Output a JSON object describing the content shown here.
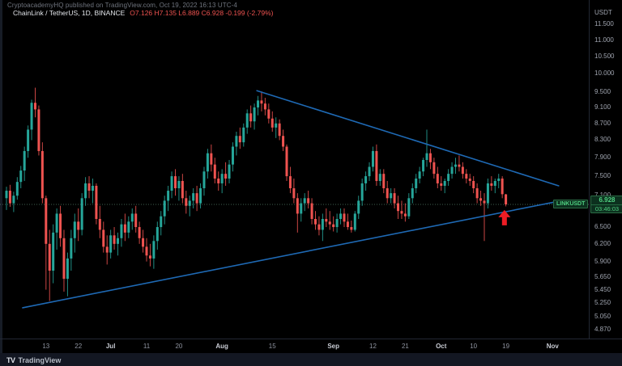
{
  "header": {
    "watermark": "CryptoacademyHQ published on TradingView.com, Oct 19, 2022 16:13 UTC-4",
    "symbol": "ChainLink / TetherUS, 1D, BINANCE",
    "ohlc": "O7.126 H7.135 L6.889 C6.928 -0.199 (-2.79%)"
  },
  "price_axis": {
    "unit": "USDT",
    "ticks": [
      {
        "label": "11.500",
        "value": 11.5
      },
      {
        "label": "11.000",
        "value": 11.0
      },
      {
        "label": "10.500",
        "value": 10.5
      },
      {
        "label": "10.000",
        "value": 10.0
      },
      {
        "label": "9.500",
        "value": 9.5
      },
      {
        "label": "9.100",
        "value": 9.1
      },
      {
        "label": "8.700",
        "value": 8.7
      },
      {
        "label": "8.300",
        "value": 8.3
      },
      {
        "label": "7.900",
        "value": 7.9
      },
      {
        "label": "7.500",
        "value": 7.5
      },
      {
        "label": "7.100",
        "value": 7.1
      },
      {
        "label": "6.500",
        "value": 6.5
      },
      {
        "label": "6.200",
        "value": 6.2
      },
      {
        "label": "5.900",
        "value": 5.9
      },
      {
        "label": "5.650",
        "value": 5.65
      },
      {
        "label": "5.450",
        "value": 5.45
      },
      {
        "label": "5.250",
        "value": 5.25
      },
      {
        "label": "5.050",
        "value": 5.05
      },
      {
        "label": "4.870",
        "value": 4.87
      }
    ],
    "current": {
      "price": "6.928",
      "countdown": "03:46:03"
    }
  },
  "time_axis": {
    "ticks": [
      {
        "label": "13",
        "bar": 11,
        "month": false
      },
      {
        "label": "22",
        "bar": 20,
        "month": false
      },
      {
        "label": "Jul",
        "bar": 29,
        "month": true
      },
      {
        "label": "11",
        "bar": 39,
        "month": false
      },
      {
        "label": "20",
        "bar": 48,
        "month": false
      },
      {
        "label": "Aug",
        "bar": 60,
        "month": true
      },
      {
        "label": "15",
        "bar": 74,
        "month": false
      },
      {
        "label": "Sep",
        "bar": 91,
        "month": true
      },
      {
        "label": "12",
        "bar": 102,
        "month": false
      },
      {
        "label": "21",
        "bar": 111,
        "month": false
      },
      {
        "label": "Oct",
        "bar": 121,
        "month": true
      },
      {
        "label": "10",
        "bar": 130,
        "month": false
      },
      {
        "label": "19",
        "bar": 139,
        "month": false
      },
      {
        "label": "Nov",
        "bar": 152,
        "month": true
      }
    ]
  },
  "symbol_label": "LINKUSDT",
  "footer": {
    "logo_glyph": "TV",
    "brand": "TradingView"
  },
  "colors": {
    "background": "#000000",
    "up": "#26a69a",
    "down": "#ef5350",
    "trendline": "#1e69b4",
    "arrow": "#ed1c24",
    "price_line": "#567f6a",
    "label_bg": "#0c301e",
    "label_text": "#50d282"
  },
  "chart_data": {
    "type": "candlestick",
    "symbol": "LINKUSDT",
    "exchange": "BINANCE",
    "interval": "1D",
    "title": "ChainLink / TetherUS, 1D, BINANCE",
    "start_date": "2022-06-02",
    "end_date": "2022-10-19",
    "price_scale": "log",
    "ylim": [
      4.75,
      12.3
    ],
    "grid": false,
    "last_bar": {
      "open": 7.126,
      "high": 7.135,
      "low": 6.889,
      "close": 6.928,
      "change": -0.199,
      "change_pct": "-2.79%"
    },
    "price_line": 6.928,
    "candles": [
      [
        7.05,
        7.28,
        6.82,
        7.2
      ],
      [
        7.2,
        7.32,
        6.88,
        6.95
      ],
      [
        6.95,
        7.18,
        6.78,
        7.1
      ],
      [
        7.1,
        7.48,
        7.02,
        7.38
      ],
      [
        7.38,
        7.72,
        7.25,
        7.62
      ],
      [
        7.62,
        8.15,
        7.4,
        8.05
      ],
      [
        8.05,
        8.65,
        7.9,
        8.55
      ],
      [
        8.55,
        9.3,
        8.3,
        9.22
      ],
      [
        9.22,
        9.62,
        8.85,
        9.05
      ],
      [
        9.05,
        9.15,
        7.95,
        8.05
      ],
      [
        8.05,
        8.25,
        6.95,
        7.05
      ],
      [
        7.05,
        7.1,
        5.45,
        6.2
      ],
      [
        6.2,
        6.45,
        5.28,
        5.75
      ],
      [
        5.75,
        6.55,
        5.55,
        6.4
      ],
      [
        6.4,
        6.85,
        6.1,
        6.75
      ],
      [
        6.75,
        6.9,
        6.15,
        6.3
      ],
      [
        6.3,
        6.45,
        5.42,
        5.62
      ],
      [
        5.62,
        6.05,
        5.35,
        5.95
      ],
      [
        5.95,
        6.45,
        5.75,
        6.3
      ],
      [
        6.3,
        6.75,
        6.05,
        6.6
      ],
      [
        6.6,
        6.85,
        6.25,
        6.45
      ],
      [
        6.45,
        7.15,
        6.35,
        7.05
      ],
      [
        7.05,
        7.48,
        6.9,
        7.35
      ],
      [
        7.35,
        7.5,
        7.05,
        7.2
      ],
      [
        7.2,
        7.45,
        6.95,
        7.3
      ],
      [
        7.3,
        7.35,
        6.55,
        6.65
      ],
      [
        6.65,
        6.9,
        6.3,
        6.45
      ],
      [
        6.45,
        6.6,
        6.05,
        6.15
      ],
      [
        6.15,
        6.35,
        5.85,
        6.05
      ],
      [
        6.05,
        6.45,
        5.95,
        6.35
      ],
      [
        6.35,
        6.5,
        6.1,
        6.2
      ],
      [
        6.2,
        6.4,
        6.0,
        6.3
      ],
      [
        6.3,
        6.65,
        6.15,
        6.55
      ],
      [
        6.55,
        6.75,
        6.25,
        6.4
      ],
      [
        6.4,
        6.7,
        6.3,
        6.6
      ],
      [
        6.6,
        6.85,
        6.45,
        6.75
      ],
      [
        6.75,
        6.9,
        6.4,
        6.5
      ],
      [
        6.5,
        6.6,
        6.2,
        6.3
      ],
      [
        6.3,
        6.45,
        6.05,
        6.15
      ],
      [
        6.15,
        6.3,
        5.9,
        6.0
      ],
      [
        6.0,
        6.2,
        5.82,
        5.95
      ],
      [
        5.95,
        6.35,
        5.78,
        6.25
      ],
      [
        6.25,
        6.6,
        6.1,
        6.5
      ],
      [
        6.5,
        6.8,
        6.35,
        6.7
      ],
      [
        6.7,
        7.1,
        6.55,
        7.0
      ],
      [
        7.0,
        7.3,
        6.8,
        7.2
      ],
      [
        7.2,
        7.6,
        7.05,
        7.5
      ],
      [
        7.5,
        7.65,
        7.1,
        7.25
      ],
      [
        7.25,
        7.5,
        7.0,
        7.4
      ],
      [
        7.4,
        7.55,
        6.95,
        7.05
      ],
      [
        7.05,
        7.2,
        6.75,
        6.9
      ],
      [
        6.9,
        7.1,
        6.7,
        7.0
      ],
      [
        7.0,
        7.25,
        6.85,
        7.15
      ],
      [
        7.15,
        7.3,
        6.8,
        6.95
      ],
      [
        6.95,
        7.35,
        6.85,
        7.25
      ],
      [
        7.25,
        7.7,
        7.1,
        7.6
      ],
      [
        7.6,
        8.1,
        7.45,
        8.0
      ],
      [
        8.0,
        8.2,
        7.6,
        7.75
      ],
      [
        7.75,
        7.9,
        7.35,
        7.45
      ],
      [
        7.45,
        7.6,
        7.2,
        7.35
      ],
      [
        7.35,
        7.65,
        7.15,
        7.55
      ],
      [
        7.55,
        7.8,
        7.3,
        7.45
      ],
      [
        7.45,
        7.85,
        7.35,
        7.75
      ],
      [
        7.75,
        8.25,
        7.6,
        8.15
      ],
      [
        8.15,
        8.5,
        7.95,
        8.4
      ],
      [
        8.4,
        8.6,
        8.1,
        8.25
      ],
      [
        8.25,
        8.7,
        8.15,
        8.6
      ],
      [
        8.6,
        9.05,
        8.45,
        8.95
      ],
      [
        8.95,
        9.15,
        8.6,
        8.75
      ],
      [
        8.75,
        9.2,
        8.55,
        9.1
      ],
      [
        9.1,
        9.4,
        8.9,
        9.28
      ],
      [
        9.28,
        9.52,
        9.0,
        9.2
      ],
      [
        9.2,
        9.35,
        8.9,
        9.05
      ],
      [
        9.05,
        9.2,
        8.7,
        8.82
      ],
      [
        8.82,
        9.0,
        8.5,
        8.6
      ],
      [
        8.6,
        8.85,
        8.35,
        8.7
      ],
      [
        8.7,
        8.8,
        8.3,
        8.4
      ],
      [
        8.4,
        8.55,
        8.05,
        8.15
      ],
      [
        8.15,
        8.2,
        7.4,
        7.5
      ],
      [
        7.5,
        7.7,
        7.15,
        7.25
      ],
      [
        7.25,
        7.45,
        6.95,
        7.05
      ],
      [
        7.05,
        7.15,
        6.4,
        6.75
      ],
      [
        6.75,
        7.05,
        6.6,
        6.95
      ],
      [
        6.95,
        7.15,
        6.8,
        7.05
      ],
      [
        7.05,
        7.2,
        6.85,
        6.95
      ],
      [
        6.95,
        7.05,
        6.55,
        6.65
      ],
      [
        6.65,
        6.8,
        6.45,
        6.55
      ],
      [
        6.55,
        6.7,
        6.35,
        6.45
      ],
      [
        6.45,
        6.75,
        6.25,
        6.65
      ],
      [
        6.65,
        6.85,
        6.5,
        6.6
      ],
      [
        6.6,
        6.8,
        6.45,
        6.55
      ],
      [
        6.55,
        6.7,
        6.42,
        6.5
      ],
      [
        6.5,
        6.75,
        6.4,
        6.65
      ],
      [
        6.65,
        6.85,
        6.55,
        6.75
      ],
      [
        6.75,
        6.85,
        6.5,
        6.6
      ],
      [
        6.6,
        6.75,
        6.45,
        6.5
      ],
      [
        6.5,
        6.62,
        6.4,
        6.45
      ],
      [
        6.45,
        6.8,
        6.42,
        6.75
      ],
      [
        6.75,
        7.1,
        6.65,
        7.0
      ],
      [
        7.0,
        7.45,
        6.9,
        7.35
      ],
      [
        7.35,
        7.6,
        7.2,
        7.5
      ],
      [
        7.5,
        7.8,
        7.4,
        7.7
      ],
      [
        7.7,
        8.15,
        7.6,
        8.05
      ],
      [
        8.05,
        8.2,
        7.3,
        7.4
      ],
      [
        7.4,
        7.65,
        7.3,
        7.55
      ],
      [
        7.55,
        7.65,
        7.15,
        7.25
      ],
      [
        7.25,
        7.4,
        6.95,
        7.05
      ],
      [
        7.05,
        7.25,
        6.95,
        7.15
      ],
      [
        7.15,
        7.25,
        6.85,
        6.95
      ],
      [
        6.95,
        7.1,
        6.65,
        6.8
      ],
      [
        6.8,
        7.0,
        6.65,
        6.75
      ],
      [
        6.75,
        6.95,
        6.6,
        6.7
      ],
      [
        6.7,
        7.15,
        6.65,
        7.05
      ],
      [
        7.05,
        7.35,
        6.95,
        7.25
      ],
      [
        7.25,
        7.55,
        7.15,
        7.45
      ],
      [
        7.45,
        7.7,
        7.35,
        7.6
      ],
      [
        7.6,
        7.9,
        7.5,
        7.85
      ],
      [
        7.85,
        8.55,
        7.7,
        8.0
      ],
      [
        8.0,
        8.1,
        7.65,
        7.8
      ],
      [
        7.8,
        7.9,
        7.45,
        7.55
      ],
      [
        7.55,
        7.7,
        7.25,
        7.35
      ],
      [
        7.35,
        7.5,
        7.2,
        7.3
      ],
      [
        7.3,
        7.45,
        7.15,
        7.4
      ],
      [
        7.4,
        7.65,
        7.3,
        7.55
      ],
      [
        7.55,
        7.8,
        7.45,
        7.7
      ],
      [
        7.7,
        7.9,
        7.55,
        7.75
      ],
      [
        7.75,
        7.95,
        7.6,
        7.7
      ],
      [
        7.7,
        7.8,
        7.45,
        7.55
      ],
      [
        7.55,
        7.65,
        7.35,
        7.45
      ],
      [
        7.45,
        7.55,
        7.3,
        7.4
      ],
      [
        7.4,
        7.5,
        7.15,
        7.25
      ],
      [
        7.25,
        7.35,
        6.95,
        7.05
      ],
      [
        7.05,
        7.2,
        6.9,
        7.0
      ],
      [
        7.0,
        7.15,
        6.25,
        6.95
      ],
      [
        6.95,
        7.45,
        6.85,
        7.35
      ],
      [
        7.35,
        7.5,
        7.2,
        7.3
      ],
      [
        7.3,
        7.45,
        7.15,
        7.4
      ],
      [
        7.4,
        7.55,
        7.25,
        7.45
      ],
      [
        7.45,
        7.5,
        7.05,
        7.13
      ],
      [
        7.126,
        7.135,
        6.889,
        6.928
      ]
    ],
    "trendlines": [
      {
        "name": "descending-resistance",
        "x1_bar": 69.7,
        "p1": 9.54,
        "x2_bar": 153.7,
        "p2": 7.3
      },
      {
        "name": "ascending-support",
        "x1_bar": 4.5,
        "p1": 5.18,
        "x2_bar": 153.7,
        "p2": 6.99
      }
    ],
    "arrow": {
      "bar": 138.6,
      "price_tip": 6.82
    }
  }
}
